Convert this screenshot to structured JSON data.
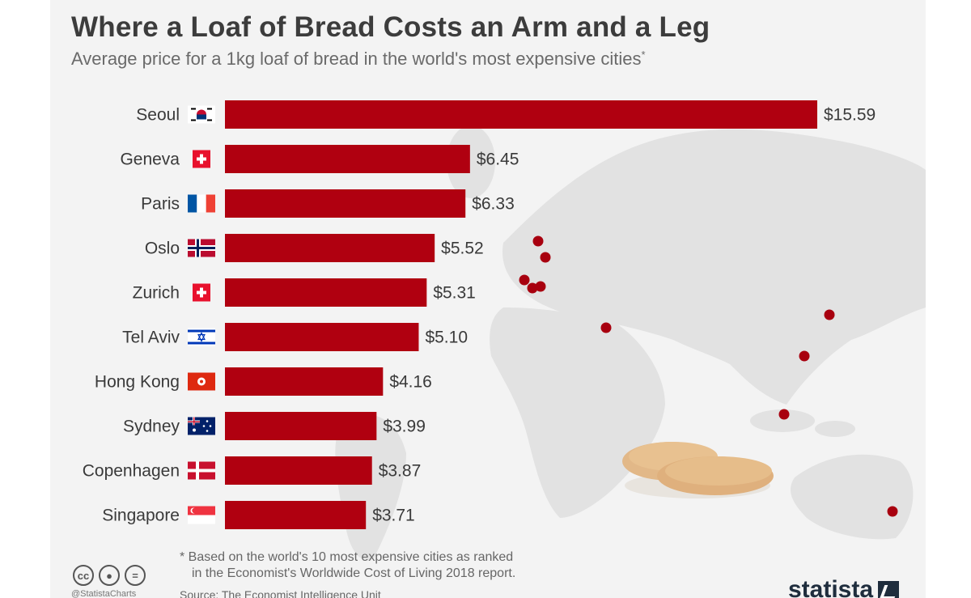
{
  "header": {
    "title": "Where a Loaf of Bread Costs an Arm and a Leg",
    "subtitle": "Average price for a 1kg loaf of bread in the world's most expensive cities",
    "subtitle_marker": "*"
  },
  "chart_data": {
    "type": "bar",
    "orientation": "horizontal",
    "categories": [
      "Seoul",
      "Geneva",
      "Paris",
      "Oslo",
      "Zurich",
      "Tel Aviv",
      "Hong Kong",
      "Sydney",
      "Copenhagen",
      "Singapore"
    ],
    "flags": [
      "south-korea-flag",
      "switzerland-flag",
      "france-flag",
      "norway-flag",
      "switzerland-flag",
      "israel-flag",
      "hong-kong-flag",
      "australia-flag",
      "denmark-flag",
      "singapore-flag"
    ],
    "values": [
      15.59,
      6.45,
      6.33,
      5.52,
      5.31,
      5.1,
      4.16,
      3.99,
      3.87,
      3.71
    ],
    "value_labels": [
      "$15.59",
      "$6.45",
      "$6.33",
      "$5.52",
      "$5.31",
      "$5.10",
      "$4.16",
      "$3.99",
      "$3.87",
      "$3.71"
    ],
    "xlim": [
      0,
      15.59
    ],
    "bar_color": "#b00010",
    "marker_color": "#a8000f",
    "grid": false,
    "legend": "none"
  },
  "footer": {
    "footnote_line1": "* Based on the world's 10 most expensive cities as ranked",
    "footnote_line2": "in the Economist's Worldwide Cost of Living 2018 report.",
    "source": "Source: The Economist Intelligence Unit",
    "handle": "@StatistaCharts",
    "logo": "statista",
    "license_icons": [
      "cc-icon",
      "by-icon",
      "nd-icon"
    ]
  }
}
